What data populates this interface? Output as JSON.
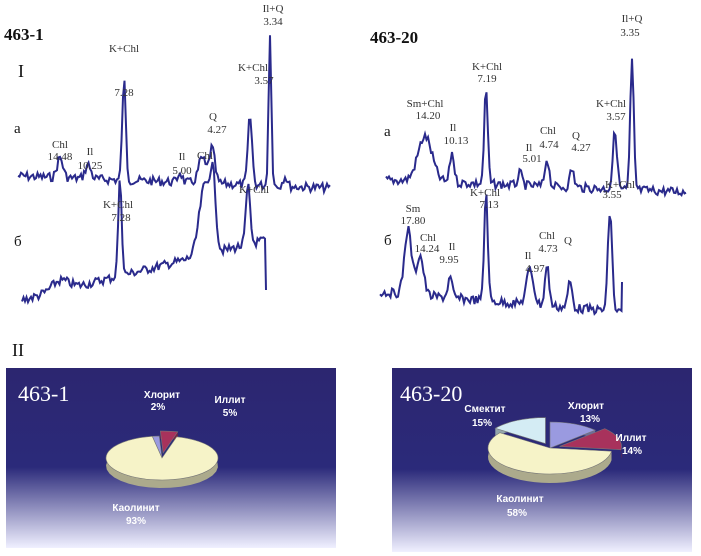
{
  "figure": {
    "section_I": "I",
    "section_II": "II",
    "curve_a": "а",
    "curve_b": "б"
  },
  "xrd": [
    {
      "sample": "463-1",
      "pattern_a_peaks": [
        {
          "label": "Chl",
          "d": "14.48"
        },
        {
          "label": "Il",
          "d": "10.25"
        },
        {
          "label": "K+Chl",
          "d": "7.28"
        },
        {
          "label": "Il",
          "d": "5.00"
        },
        {
          "label": "Chl",
          "d": ""
        },
        {
          "label": "Q",
          "d": "4.27"
        },
        {
          "label": "K+Chl",
          "d": "3.57"
        },
        {
          "label": "Il+Q",
          "d": "3.34"
        }
      ],
      "pattern_b_peaks": [
        {
          "label": "K+Chl",
          "d": "7.28"
        },
        {
          "label": "K+Chl",
          "d": ""
        }
      ]
    },
    {
      "sample": "463-20",
      "pattern_a_peaks": [
        {
          "label": "Sm+Chl",
          "d": "14.20"
        },
        {
          "label": "Il",
          "d": "10.13"
        },
        {
          "label": "K+Chl",
          "d": "7.19"
        },
        {
          "label": "Il",
          "d": "5.01"
        },
        {
          "label": "Chl",
          "d": "4.74"
        },
        {
          "label": "Q",
          "d": "4.27"
        },
        {
          "label": "K+Chl",
          "d": "3.57"
        },
        {
          "label": "Il+Q",
          "d": "3.35"
        }
      ],
      "pattern_b_peaks": [
        {
          "label": "Sm",
          "d": "17.80"
        },
        {
          "label": "Chl",
          "d": "14.24"
        },
        {
          "label": "Il",
          "d": "9.95"
        },
        {
          "label": "K+Chl",
          "d": "7.13"
        },
        {
          "label": "Il",
          "d": "4.97"
        },
        {
          "label": "Chl",
          "d": "4.73"
        },
        {
          "label": "Q",
          "d": ""
        },
        {
          "label": "K+Chl",
          "d": "3.55"
        }
      ]
    }
  ],
  "chart_data": [
    {
      "type": "pie",
      "title": "463-1",
      "slices": [
        {
          "label": "Хлорит",
          "value": 2,
          "value_label": "2%",
          "color": "#9a9ae0"
        },
        {
          "label": "Иллит",
          "value": 5,
          "value_label": "5%",
          "color": "#a8325c"
        },
        {
          "label": "Каолинит",
          "value": 93,
          "value_label": "93%",
          "color": "#f6f3c8"
        }
      ]
    },
    {
      "type": "pie",
      "title": "463-20",
      "slices": [
        {
          "label": "Хлорит",
          "value": 13,
          "value_label": "13%",
          "color": "#9a9ae0"
        },
        {
          "label": "Иллит",
          "value": 14,
          "value_label": "14%",
          "color": "#a8325c"
        },
        {
          "label": "Каолинит",
          "value": 58,
          "value_label": "58%",
          "color": "#f6f3c8"
        },
        {
          "label": "Смектит",
          "value": 15,
          "value_label": "15%",
          "color": "#d4ecf4"
        }
      ]
    }
  ],
  "colors": {
    "trace": "#2a2a8c",
    "panel_top": "#2c2670",
    "panel_bottom": "#f0f0ff",
    "pie_label_text": "#ffffff"
  }
}
